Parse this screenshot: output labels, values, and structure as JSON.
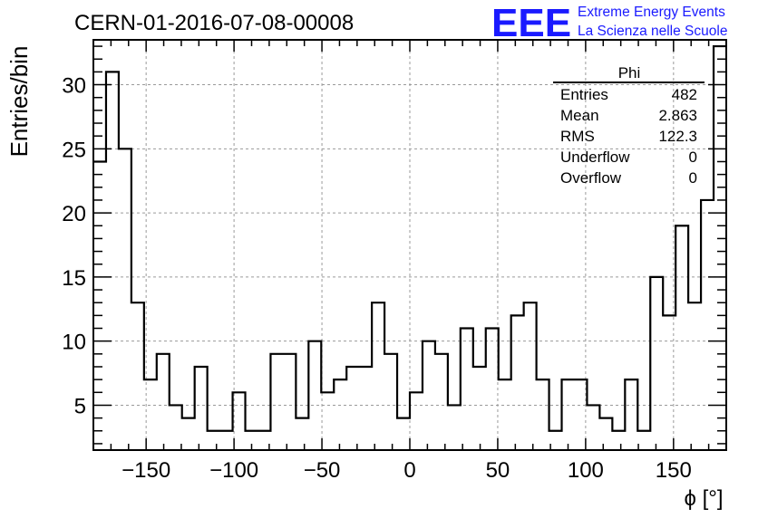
{
  "title": "CERN-01-2016-07-08-00008",
  "logo": {
    "mark": "EEE",
    "line1": "Extreme Energy Events",
    "line2": "La Scienza nelle Scuole",
    "color": "#1a1aff"
  },
  "stats": {
    "name": "Phi",
    "rows": [
      {
        "label": "Entries",
        "value": "482"
      },
      {
        "label": "Mean",
        "value": "2.863"
      },
      {
        "label": "RMS",
        "value": "122.3"
      },
      {
        "label": "Underflow",
        "value": "0"
      },
      {
        "label": "Overflow",
        "value": "0"
      }
    ]
  },
  "chart_data": {
    "type": "bar",
    "histogram": true,
    "xlabel": "ϕ [°]",
    "ylabel": "Entries/bin",
    "xlim": [
      -180,
      180
    ],
    "ylim": [
      1.5,
      33.5
    ],
    "bin_edges": [
      -180,
      -172.8,
      -165.6,
      -158.4,
      -151.2,
      -144,
      -136.8,
      -129.6,
      -122.4,
      -115.2,
      -108,
      -100.8,
      -93.6,
      -86.4,
      -79.2,
      -72,
      -64.8,
      -57.6,
      -50.4,
      -43.2,
      -36,
      -28.8,
      -21.6,
      -14.4,
      -7.2,
      0,
      7.2,
      14.4,
      21.6,
      28.8,
      36,
      43.2,
      50.4,
      57.6,
      64.8,
      72,
      79.2,
      86.4,
      93.6,
      100.8,
      108,
      115.2,
      122.4,
      129.6,
      136.8,
      144,
      151.2,
      158.4,
      165.6,
      172.8,
      180
    ],
    "values": [
      24,
      31,
      25,
      13,
      7,
      9,
      5,
      4,
      8,
      3,
      3,
      6,
      3,
      3,
      9,
      9,
      4,
      10,
      6,
      7,
      8,
      8,
      13,
      9,
      4,
      6,
      10,
      9,
      5,
      11,
      8,
      11,
      7,
      12,
      13,
      7,
      3,
      7,
      7,
      5,
      4,
      3,
      7,
      3,
      15,
      12,
      19,
      13,
      21,
      33
    ],
    "xticks": [
      -150,
      -100,
      -50,
      0,
      50,
      100,
      150
    ],
    "xtick_labels": [
      "−150",
      "−100",
      "−50",
      "0",
      "50",
      "100",
      "150"
    ],
    "yticks": [
      5,
      10,
      15,
      20,
      25,
      30
    ],
    "ytick_labels": [
      "5",
      "10",
      "15",
      "20",
      "25",
      "30"
    ],
    "grid": true,
    "legend": "stats box top-right"
  }
}
